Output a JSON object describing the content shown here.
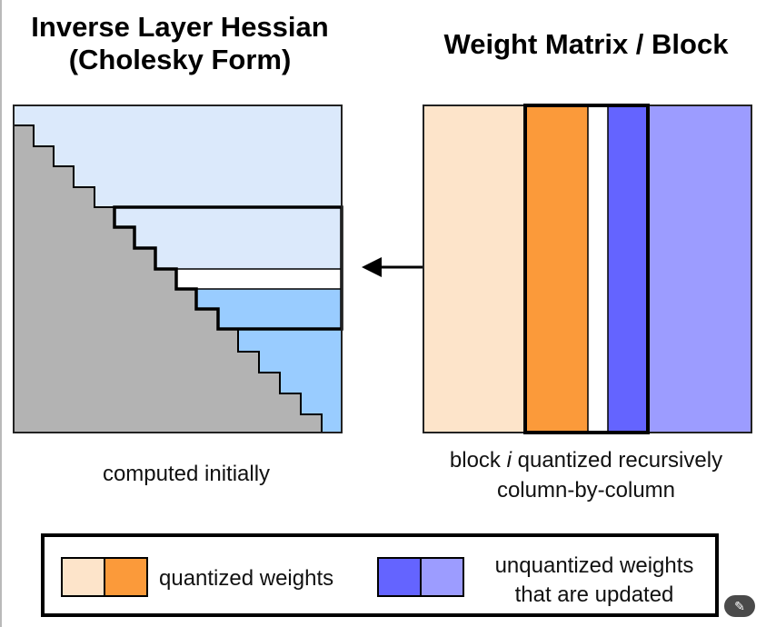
{
  "left_panel": {
    "title_line1": "Inverse Layer Hessian",
    "title_line2": "(Cholesky Form)",
    "caption": "computed initially"
  },
  "right_panel": {
    "title": "Weight Matrix / Block",
    "caption_prefix": "block ",
    "caption_italic": "i",
    "caption_suffix": " quantized recursively",
    "caption_line2": "column-by-column"
  },
  "legend": {
    "quantized_label": "quantized weights",
    "unquantized_label_line1": "unquantized weights",
    "unquantized_label_line2": "that are updated"
  },
  "colors": {
    "quantized_light": "#fde4ca",
    "quantized_dark": "#fb9a3a",
    "unquantized_dark": "#6464ff",
    "unquantized_light": "#9c9cff",
    "hessian_upper": "#dbe9fb",
    "hessian_lower": "#99ccff",
    "hessian_gray": "#b3b3b3",
    "white": "#ffffff"
  },
  "icons": {
    "corner_button": "magic-wand-icon"
  }
}
